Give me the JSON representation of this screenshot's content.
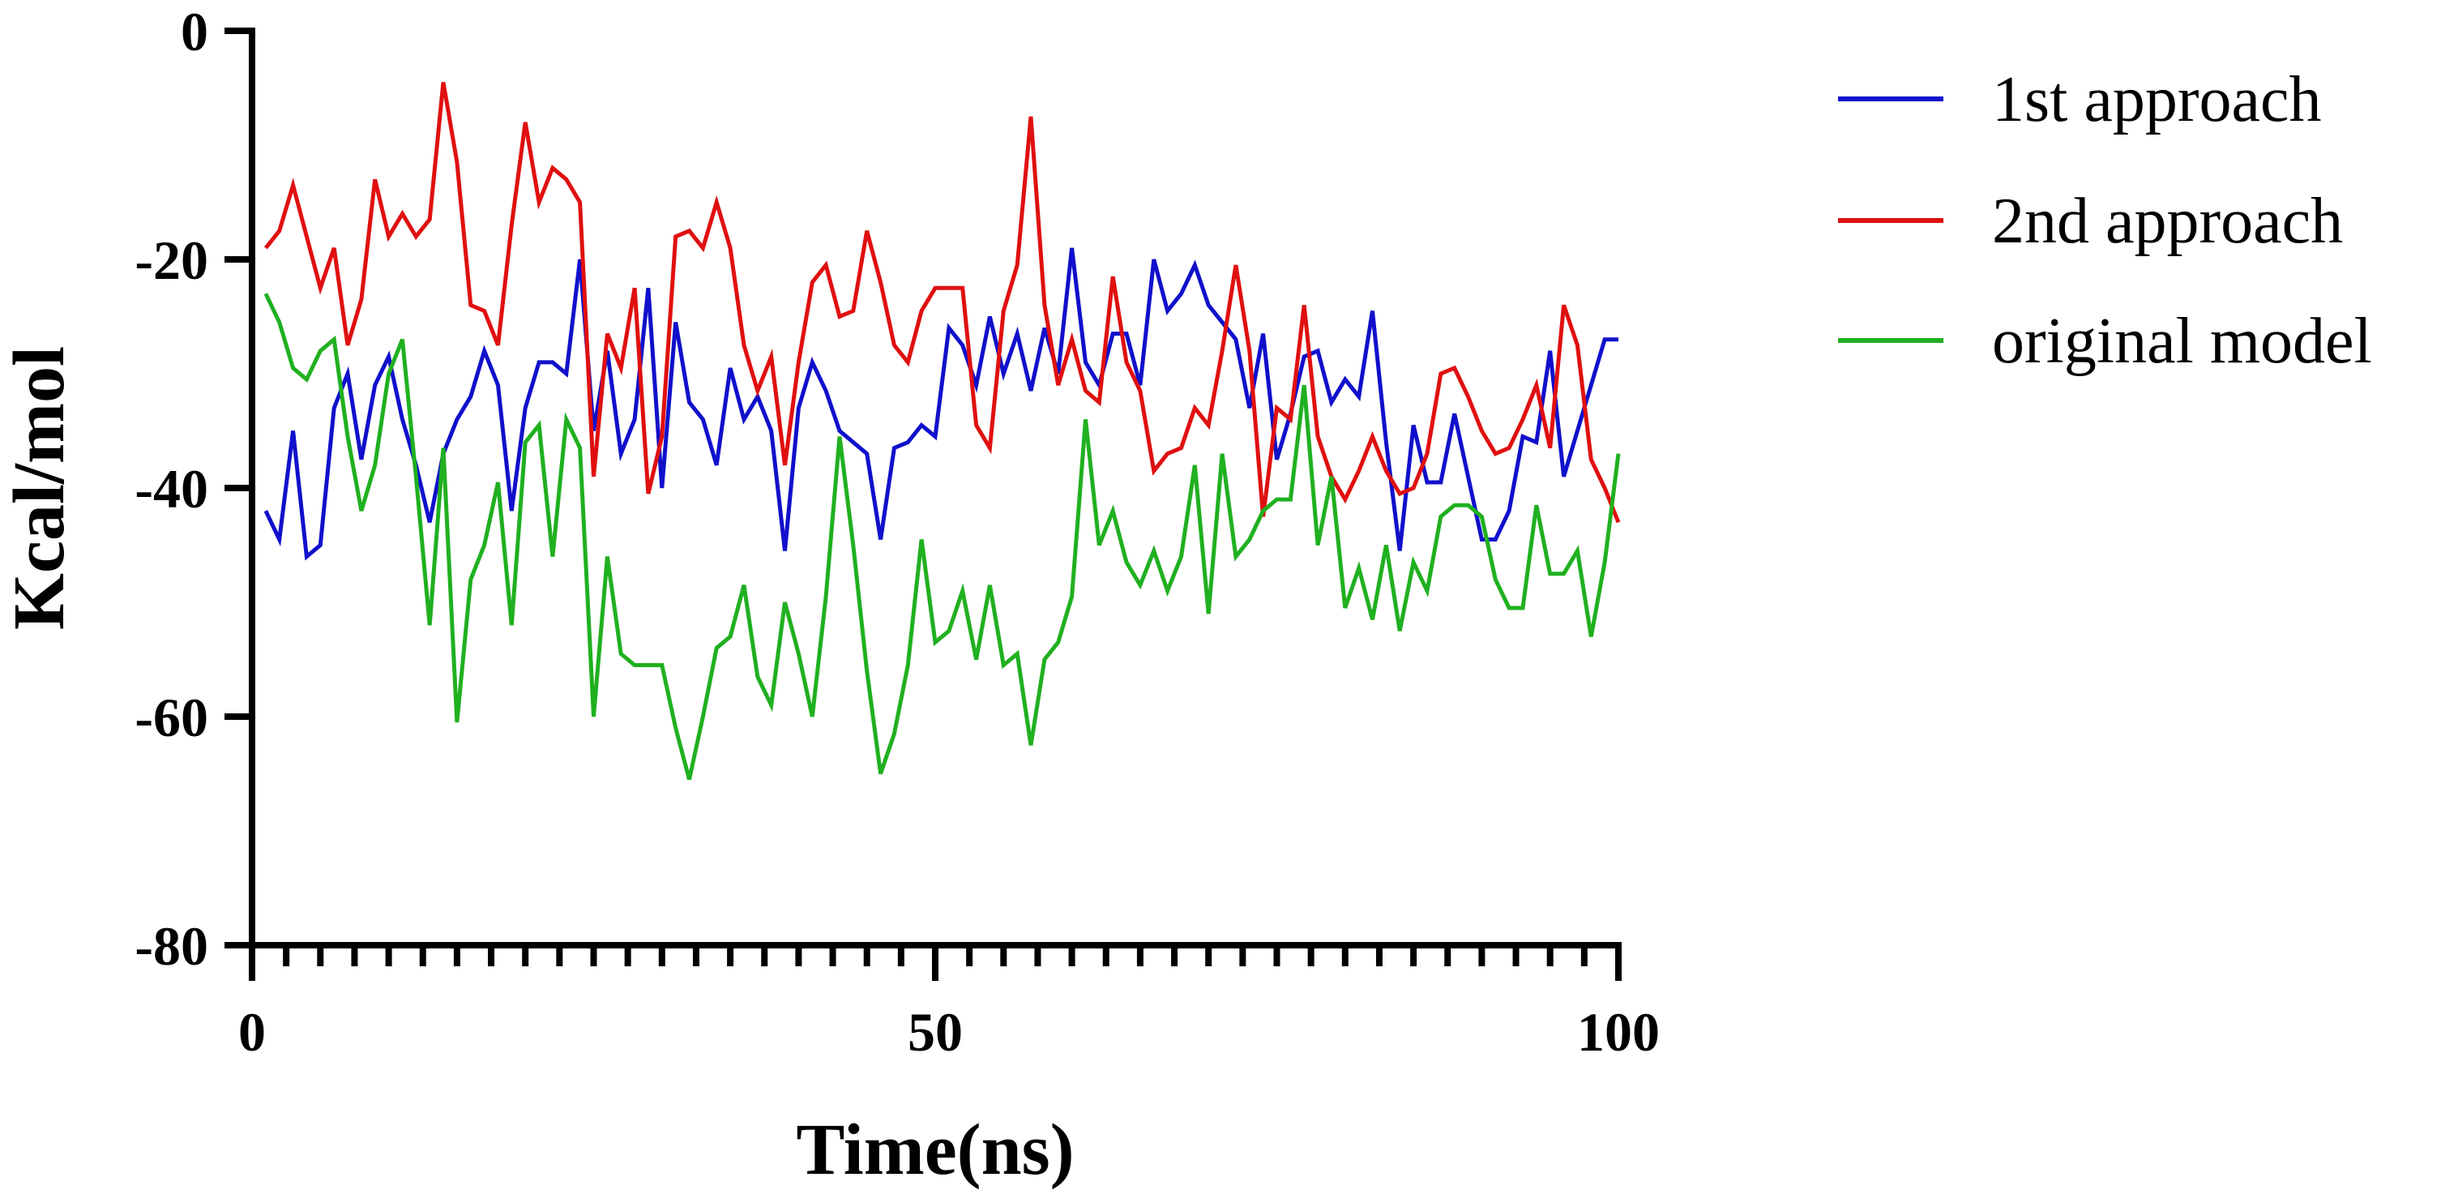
{
  "chart_data": {
    "type": "line",
    "title": "",
    "xlabel": "Time(ns)",
    "ylabel": "Kcal/mol",
    "xlim": [
      0,
      100
    ],
    "ylim": [
      -80,
      0
    ],
    "xticks": [
      0,
      50,
      100
    ],
    "xtick_labels": [
      "0",
      "50",
      "100"
    ],
    "yticks": [
      0,
      -20,
      -40,
      -60,
      -80
    ],
    "ytick_labels": [
      "0",
      "-20",
      "-40",
      "-60",
      "-80"
    ],
    "x_minor_tick_step": 2.5,
    "grid": false,
    "legend_position": "top-right outside",
    "x": [
      1,
      2,
      3,
      4,
      5,
      6,
      7,
      8,
      9,
      10,
      11,
      12,
      13,
      14,
      15,
      16,
      17,
      18,
      19,
      20,
      21,
      22,
      23,
      24,
      25,
      26,
      27,
      28,
      29,
      30,
      31,
      32,
      33,
      34,
      35,
      36,
      37,
      38,
      39,
      40,
      41,
      42,
      43,
      44,
      45,
      46,
      47,
      48,
      49,
      50,
      51,
      52,
      53,
      54,
      55,
      56,
      57,
      58,
      59,
      60,
      61,
      62,
      63,
      64,
      65,
      66,
      67,
      68,
      69,
      70,
      71,
      72,
      73,
      74,
      75,
      76,
      77,
      78,
      79,
      80,
      81,
      82,
      83,
      84,
      85,
      86,
      87,
      88,
      89,
      90,
      91,
      92,
      93,
      94,
      95,
      96,
      97,
      98,
      99,
      100
    ],
    "series": [
      {
        "name": "1st approach",
        "color": "#1010cc",
        "values": [
          -42,
          -44.5,
          -35,
          -46,
          -45,
          -33,
          -30,
          -37.5,
          -31,
          -28.5,
          -34,
          -38,
          -43,
          -37,
          -34,
          -32,
          -28,
          -31,
          -42,
          -33,
          -29,
          -29,
          -30,
          -20,
          -35,
          -28,
          -37,
          -34,
          -22.5,
          -40,
          -25.5,
          -32.5,
          -34,
          -38,
          -29.5,
          -34,
          -32,
          -35,
          -45.5,
          -33,
          -29,
          -31.5,
          -35,
          -36,
          -37,
          -44.5,
          -36.5,
          -36,
          -34.5,
          -35.5,
          -26,
          -27.5,
          -31,
          -25,
          -30,
          -26.5,
          -31.5,
          -26,
          -30,
          -19,
          -29,
          -31,
          -26.5,
          -26.5,
          -31,
          -20,
          -24.5,
          -23,
          -20.5,
          -24,
          -25.5,
          -27,
          -33,
          -26.5,
          -37.5,
          -33.5,
          -28.5,
          -28,
          -32.5,
          -30.5,
          -32,
          -24.5,
          -36,
          -45.5,
          -34.5,
          -39.5,
          -39.5,
          -33.5,
          -39,
          -44.5,
          -44.5,
          -42,
          -35.5,
          -36,
          -28,
          -39,
          -35,
          -31,
          -27,
          -27
        ]
      },
      {
        "name": "2nd approach",
        "color": "#e01010",
        "values": [
          -19,
          -17.5,
          -13.5,
          -18,
          -22.5,
          -19,
          -27.5,
          -23.5,
          -13,
          -18,
          -16,
          -18,
          -16.5,
          -4.5,
          -11.5,
          -24,
          -24.5,
          -27.5,
          -17,
          -8,
          -15,
          -12,
          -13,
          -15,
          -39,
          -26.5,
          -29.5,
          -22.5,
          -40.5,
          -35.5,
          -18,
          -17.5,
          -19,
          -15,
          -19,
          -27.5,
          -31.5,
          -28.5,
          -38,
          -29,
          -22,
          -20.5,
          -25,
          -24.5,
          -17.5,
          -22,
          -27.5,
          -29,
          -24.5,
          -22.5,
          -22.5,
          -22.5,
          -34.5,
          -36.5,
          -24.5,
          -20.5,
          -7.5,
          -24,
          -31,
          -27,
          -31.5,
          -32.5,
          -21.5,
          -29,
          -31.5,
          -38.5,
          -37,
          -36.5,
          -33,
          -34.5,
          -28,
          -20.5,
          -28,
          -42.5,
          -33,
          -34,
          -24,
          -35.5,
          -39,
          -41,
          -38.5,
          -35.5,
          -38.5,
          -40.5,
          -40,
          -37,
          -30,
          -29.5,
          -32,
          -35,
          -37,
          -36.5,
          -34,
          -31,
          -36.5,
          -24,
          -27.5,
          -37.5,
          -40,
          -43
        ]
      },
      {
        "name": "original model",
        "color": "#20b020",
        "values": [
          -23,
          -25.5,
          -29.5,
          -30.5,
          -28,
          -27,
          -35.5,
          -42,
          -38,
          -30,
          -27,
          -39,
          -52,
          -36.5,
          -60.5,
          -48,
          -45,
          -39.5,
          -52,
          -36,
          -34.5,
          -46,
          -34,
          -36.5,
          -60,
          -46,
          -54.5,
          -55.5,
          -55.5,
          -55.5,
          -61,
          -65.5,
          -60,
          -54,
          -53,
          -48.5,
          -56.5,
          -59,
          -50,
          -54.5,
          -60,
          -49.5,
          -35.5,
          -45,
          -56,
          -65,
          -61.5,
          -55.5,
          -44.5,
          -53.5,
          -52.5,
          -49,
          -55,
          -48.5,
          -55.5,
          -54.5,
          -62.5,
          -55,
          -53.5,
          -49.5,
          -34,
          -45,
          -42,
          -46.5,
          -48.5,
          -45.5,
          -49,
          -46,
          -38,
          -51,
          -37,
          -46,
          -44.5,
          -42,
          -41,
          -41,
          -31,
          -45,
          -39,
          -50.5,
          -47,
          -51.5,
          -45,
          -52.5,
          -46.5,
          -49,
          -42.5,
          -41.5,
          -41.5,
          -42.5,
          -48,
          -50.5,
          -50.5,
          -41.5,
          -47.5,
          -47.5,
          -45.5,
          -53,
          -46.5,
          -37
        ]
      }
    ]
  }
}
